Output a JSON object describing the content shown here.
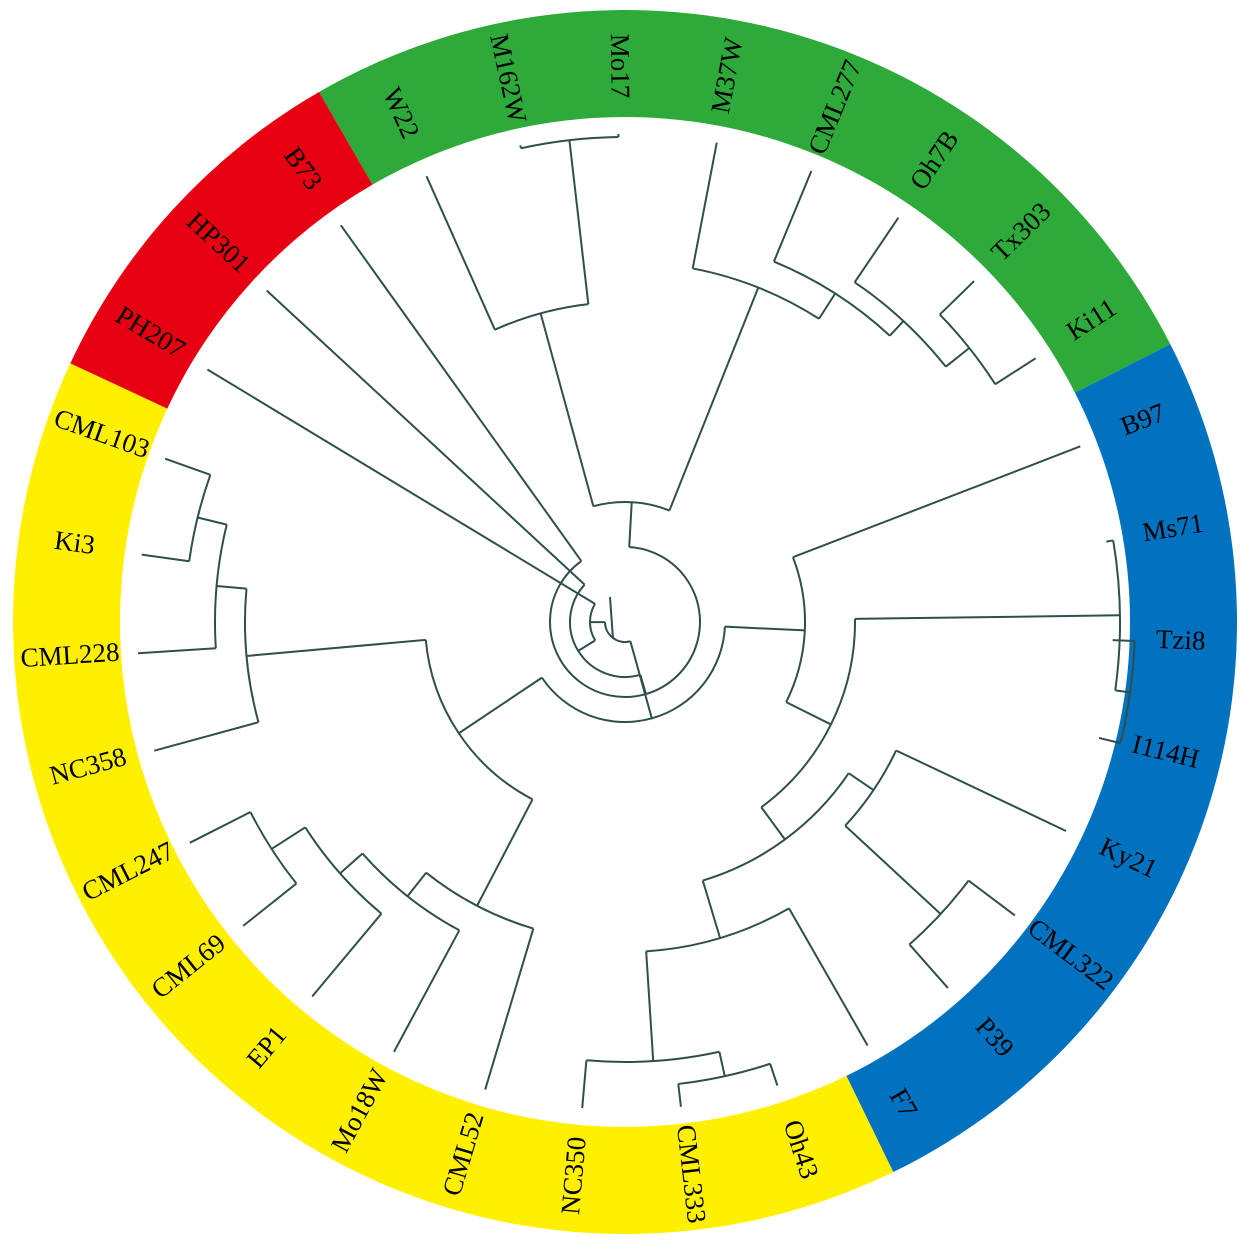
{
  "leaves": [
    "W22",
    "M162W",
    "Mo17",
    "M37W",
    "CML277",
    "Oh7B",
    "Tx303",
    "Ki11",
    "B97",
    "Ms71",
    "Tzi8",
    "I114H",
    "Ky21",
    "CML322",
    "P39",
    "F7",
    "Oh43",
    "CML333",
    "NC350",
    "CML52",
    "Mo18W",
    "EP1",
    "CML69",
    "CML247",
    "NC358",
    "CML228",
    "Ki3",
    "CML103",
    "PH207",
    "HP301",
    "B73"
  ]
}
